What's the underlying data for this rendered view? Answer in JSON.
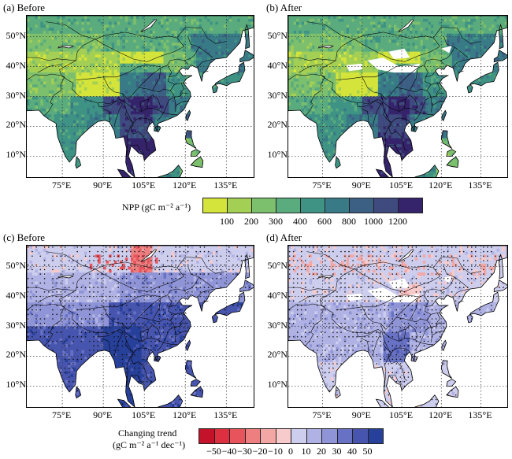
{
  "panels": [
    {
      "id": "a",
      "title": "(a) Before",
      "type": "npp"
    },
    {
      "id": "b",
      "title": "(b) After",
      "type": "npp"
    },
    {
      "id": "c",
      "title": "(c) Before",
      "type": "trend"
    },
    {
      "id": "d",
      "title": "(d) After",
      "type": "trend"
    }
  ],
  "lat_ticks": [
    "50°N",
    "40°N",
    "30°N",
    "20°N",
    "10°N"
  ],
  "lon_ticks": [
    "75°E",
    "90°E",
    "105°E",
    "120°E",
    "135°E"
  ],
  "npp_legend": {
    "label": "NPP (gC m⁻² a⁻¹)",
    "ticks": [
      "100",
      "200",
      "300",
      "400",
      "600",
      "800",
      "1000",
      "1200"
    ],
    "colors": [
      "#d4e43a",
      "#a4cf55",
      "#7cbf6d",
      "#5aab7d",
      "#3f9384",
      "#387a86",
      "#3c5f84",
      "#3f4a7f",
      "#35236b"
    ]
  },
  "trend_legend": {
    "label_line1": "Changing trend",
    "label_line2": "(gC m⁻² a⁻¹ dec⁻¹)",
    "ticks": [
      "−50",
      "−40",
      "−30",
      "−20",
      "−10",
      "0",
      "10",
      "20",
      "30",
      "40",
      "50"
    ],
    "colors": [
      "#c4122a",
      "#dc3040",
      "#e8545c",
      "#ee7f80",
      "#f3a7a5",
      "#f7cbcb",
      "#cdcdee",
      "#b0b2e4",
      "#8f94d6",
      "#6872c4",
      "#4755ae",
      "#27409a"
    ]
  }
}
